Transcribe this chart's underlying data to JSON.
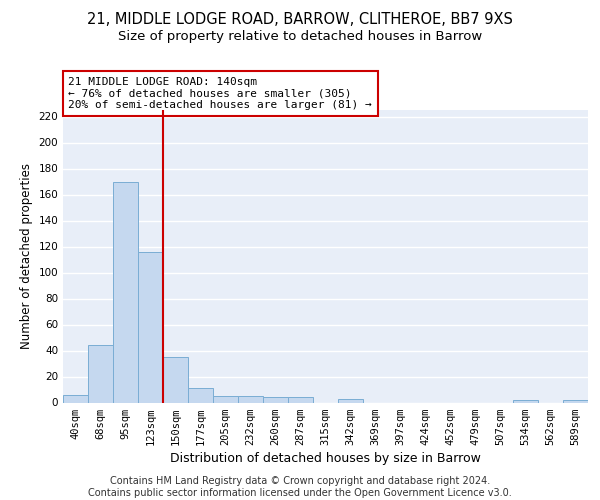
{
  "title_line1": "21, MIDDLE LODGE ROAD, BARROW, CLITHEROE, BB7 9XS",
  "title_line2": "Size of property relative to detached houses in Barrow",
  "xlabel": "Distribution of detached houses by size in Barrow",
  "ylabel": "Number of detached properties",
  "categories": [
    "40sqm",
    "68sqm",
    "95sqm",
    "123sqm",
    "150sqm",
    "177sqm",
    "205sqm",
    "232sqm",
    "260sqm",
    "287sqm",
    "315sqm",
    "342sqm",
    "369sqm",
    "397sqm",
    "424sqm",
    "452sqm",
    "479sqm",
    "507sqm",
    "534sqm",
    "562sqm",
    "589sqm"
  ],
  "values": [
    6,
    44,
    170,
    116,
    35,
    11,
    5,
    5,
    4,
    4,
    0,
    3,
    0,
    0,
    0,
    0,
    0,
    0,
    2,
    0,
    2
  ],
  "bar_color": "#c5d8ef",
  "bar_edge_color": "#7aadd4",
  "bg_color": "#e8eef8",
  "grid_color": "#ffffff",
  "vline_color": "#cc0000",
  "vline_x": 3.5,
  "annotation_line1": "21 MIDDLE LODGE ROAD: 140sqm",
  "annotation_line2": "← 76% of detached houses are smaller (305)",
  "annotation_line3": "20% of semi-detached houses are larger (81) →",
  "annotation_box_color": "#ffffff",
  "annotation_box_edge": "#cc0000",
  "ylim": [
    0,
    225
  ],
  "yticks": [
    0,
    20,
    40,
    60,
    80,
    100,
    120,
    140,
    160,
    180,
    200,
    220
  ],
  "footer_text": "Contains HM Land Registry data © Crown copyright and database right 2024.\nContains public sector information licensed under the Open Government Licence v3.0.",
  "title_fontsize": 10.5,
  "subtitle_fontsize": 9.5,
  "xlabel_fontsize": 9,
  "ylabel_fontsize": 8.5,
  "tick_fontsize": 7.5,
  "annotation_fontsize": 8,
  "footer_fontsize": 7
}
